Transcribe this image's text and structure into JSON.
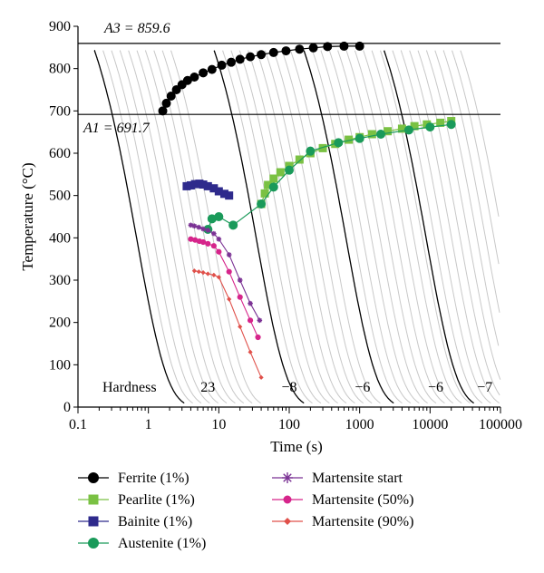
{
  "chart_data": {
    "type": "line",
    "xlabel": "Time (s)",
    "ylabel": "Temperature (°C)",
    "xscale": "log",
    "xlim": [
      0.1,
      100000
    ],
    "ylim": [
      0,
      900
    ],
    "x_tick_labels": [
      "0.1",
      "1",
      "10",
      "100",
      "1000",
      "10000",
      "100000"
    ],
    "x_ticks": [
      0.1,
      1,
      10,
      100,
      1000,
      10000,
      100000
    ],
    "y_ticks": [
      0,
      100,
      200,
      300,
      400,
      500,
      600,
      700,
      800,
      900
    ],
    "y_tick_labels": [
      "0",
      "100",
      "200",
      "300",
      "400",
      "500",
      "600",
      "700",
      "800",
      "900"
    ],
    "reference_lines": [
      {
        "label": "A3 = 859.6",
        "y": 859.6,
        "style": "solid"
      },
      {
        "label": "A1 = 691.7",
        "y": 691.7,
        "style": "solid"
      }
    ],
    "cooling_curve_families": [
      {
        "t_shift": 0.17,
        "bold_index": 5,
        "count": 10
      },
      {
        "t_shift": 8.5,
        "bold_index": 5,
        "count": 10
      },
      {
        "t_shift": 160,
        "bold_index": 5,
        "count": 10
      },
      {
        "t_shift": 2200,
        "bold_index": 5,
        "count": 10
      }
    ],
    "hardness": {
      "label": "Hardness",
      "values": [
        {
          "text": "23",
          "x": 7
        },
        {
          "text": "−8",
          "x": 100
        },
        {
          "text": "−6",
          "x": 1100
        },
        {
          "text": "−6",
          "x": 12000
        },
        {
          "text": "−7",
          "x": 60000
        }
      ]
    },
    "series": [
      {
        "name": "Ferrite (1%)",
        "color": "#000000",
        "marker": "circle",
        "points": [
          [
            1.6,
            700
          ],
          [
            1.8,
            718
          ],
          [
            2.1,
            735
          ],
          [
            2.5,
            750
          ],
          [
            3,
            762
          ],
          [
            3.6,
            772
          ],
          [
            4.5,
            780
          ],
          [
            6,
            790
          ],
          [
            8,
            798
          ],
          [
            11,
            808
          ],
          [
            15,
            815
          ],
          [
            20,
            822
          ],
          [
            28,
            828
          ],
          [
            40,
            833
          ],
          [
            60,
            838
          ],
          [
            90,
            842
          ],
          [
            140,
            846
          ],
          [
            220,
            849
          ],
          [
            350,
            852
          ],
          [
            600,
            853
          ],
          [
            1000,
            853
          ]
        ]
      },
      {
        "name": "Pearlite (1%)",
        "color": "#7ac143",
        "marker": "square",
        "points": [
          [
            40,
            480
          ],
          [
            45,
            505
          ],
          [
            50,
            525
          ],
          [
            60,
            540
          ],
          [
            75,
            555
          ],
          [
            100,
            570
          ],
          [
            140,
            585
          ],
          [
            200,
            600
          ],
          [
            300,
            612
          ],
          [
            450,
            622
          ],
          [
            700,
            632
          ],
          [
            1000,
            638
          ],
          [
            1500,
            645
          ],
          [
            2500,
            652
          ],
          [
            4000,
            658
          ],
          [
            6000,
            664
          ],
          [
            9000,
            668
          ],
          [
            14000,
            672
          ],
          [
            20000,
            676
          ]
        ]
      },
      {
        "name": "Bainite (1%)",
        "color": "#2e2a8c",
        "marker": "square",
        "points": [
          [
            3.5,
            522
          ],
          [
            4,
            524
          ],
          [
            4.6,
            527
          ],
          [
            5.3,
            528
          ],
          [
            6,
            526
          ],
          [
            7,
            522
          ],
          [
            8.5,
            517
          ],
          [
            10,
            510
          ],
          [
            12,
            504
          ],
          [
            14,
            500
          ]
        ]
      },
      {
        "name": "Austenite (1%)",
        "color": "#1a9a5a",
        "marker": "circle",
        "points": [
          [
            7,
            420
          ],
          [
            8,
            445
          ],
          [
            10,
            450
          ],
          [
            16,
            430
          ],
          [
            40,
            480
          ],
          [
            60,
            520
          ],
          [
            100,
            560
          ],
          [
            200,
            605
          ],
          [
            500,
            625
          ],
          [
            1000,
            635
          ],
          [
            2000,
            645
          ],
          [
            5000,
            655
          ],
          [
            10000,
            662
          ],
          [
            20000,
            668
          ]
        ]
      },
      {
        "name": "Martensite start",
        "color": "#7b3294",
        "marker": "asterisk",
        "points": [
          [
            4,
            430
          ],
          [
            4.5,
            428
          ],
          [
            5.2,
            425
          ],
          [
            6,
            421
          ],
          [
            7,
            418
          ],
          [
            8.5,
            410
          ],
          [
            10,
            397
          ],
          [
            14,
            360
          ],
          [
            20,
            300
          ],
          [
            28,
            245
          ],
          [
            38,
            205
          ]
        ]
      },
      {
        "name": "Martensite (50%)",
        "color": "#d6258b",
        "marker": "circle",
        "points": [
          [
            4,
            397
          ],
          [
            4.6,
            395
          ],
          [
            5.3,
            392
          ],
          [
            6,
            390
          ],
          [
            7,
            386
          ],
          [
            8.5,
            381
          ],
          [
            10,
            367
          ],
          [
            14,
            320
          ],
          [
            20,
            260
          ],
          [
            28,
            205
          ],
          [
            36,
            165
          ]
        ]
      },
      {
        "name": "Martensite (90%)",
        "color": "#e0504a",
        "marker": "diamond",
        "points": [
          [
            4.5,
            322
          ],
          [
            5.2,
            320
          ],
          [
            6,
            318
          ],
          [
            7,
            315
          ],
          [
            8.5,
            312
          ],
          [
            10,
            307
          ],
          [
            14,
            255
          ],
          [
            20,
            190
          ],
          [
            28,
            130
          ],
          [
            40,
            70
          ]
        ]
      }
    ],
    "legend": {
      "placement": "bottom",
      "columns": [
        [
          "Ferrite (1%)",
          "Pearlite (1%)",
          "Bainite (1%)",
          "Austenite (1%)"
        ],
        [
          "Martensite start",
          "Martensite (50%)",
          "Martensite (90%)"
        ]
      ]
    }
  }
}
